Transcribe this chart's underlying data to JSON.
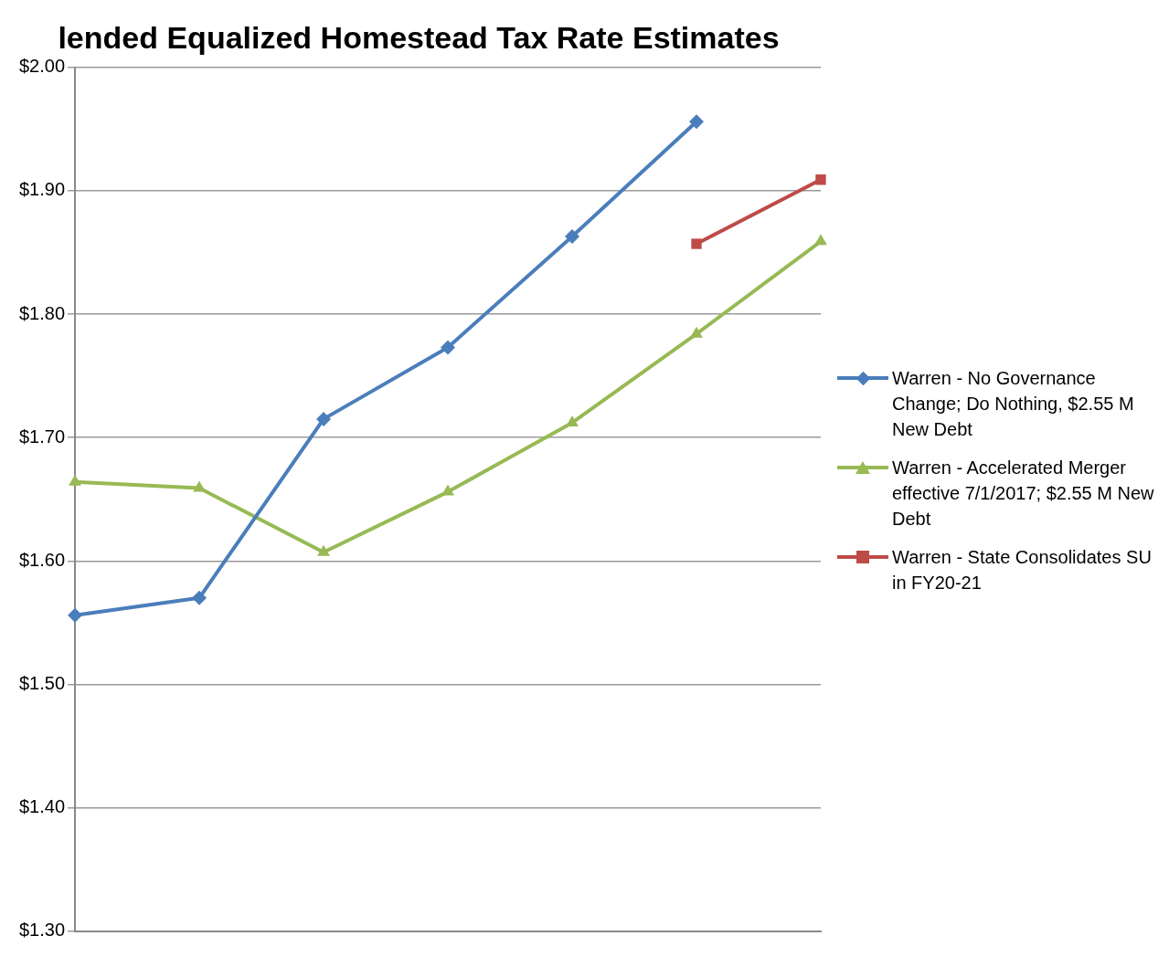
{
  "chart_data": {
    "type": "line",
    "title": "lended Equalized Homestead Tax Rate Estimates",
    "categories": [
      null,
      null,
      null,
      null,
      null,
      null,
      null
    ],
    "series": [
      {
        "name": "Warren - No Governance Change; Do Nothing, $2.55 M New Debt",
        "color": "#4a7ebb",
        "marker": "diamond",
        "values": [
          1.556,
          1.57,
          1.715,
          1.773,
          1.863,
          1.956,
          null
        ]
      },
      {
        "name": "Warren - Accelerated Merger effective 7/1/2017; $2.55 M New Debt",
        "color": "#98b954",
        "marker": "triangle",
        "values": [
          1.664,
          1.659,
          1.607,
          1.656,
          1.712,
          1.784,
          1.859
        ]
      },
      {
        "name": "Warren - State Consolidates SU in FY20-21",
        "color": "#be4b48",
        "marker": "square",
        "values": [
          null,
          null,
          null,
          null,
          null,
          1.857,
          1.909
        ]
      }
    ],
    "ylim": [
      1.3,
      2.0
    ],
    "yticks": [
      {
        "value": 1.3,
        "label": "$1.30"
      },
      {
        "value": 1.4,
        "label": "$1.40"
      },
      {
        "value": 1.5,
        "label": "$1.50"
      },
      {
        "value": 1.6,
        "label": "$1.60"
      },
      {
        "value": 1.7,
        "label": "$1.70"
      },
      {
        "value": 1.8,
        "label": "$1.80"
      },
      {
        "value": 1.9,
        "label": "$1.90"
      },
      {
        "value": 2.0,
        "label": "$2.00"
      }
    ],
    "grid": "y",
    "legend": "right",
    "line_style": "solid"
  }
}
